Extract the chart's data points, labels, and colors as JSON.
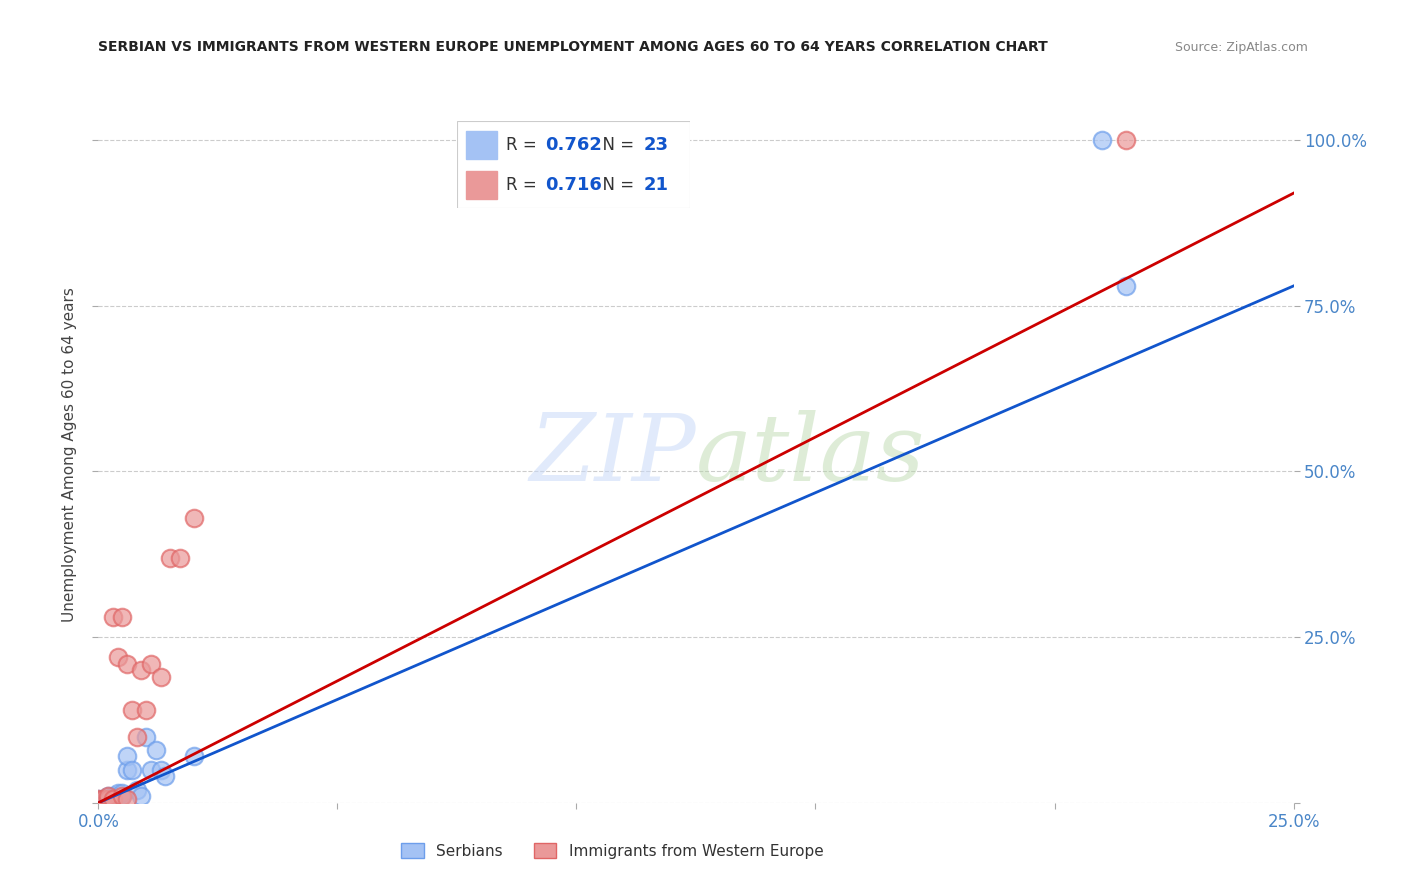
{
  "title": "SERBIAN VS IMMIGRANTS FROM WESTERN EUROPE UNEMPLOYMENT AMONG AGES 60 TO 64 YEARS CORRELATION CHART",
  "source": "Source: ZipAtlas.com",
  "ylabel": "Unemployment Among Ages 60 to 64 years",
  "xlim": [
    0.0,
    0.25
  ],
  "ylim": [
    0.0,
    1.05
  ],
  "watermark_text": "ZIPatlas",
  "serbian_color": "#a4c2f4",
  "serbian_edge_color": "#6d9eeb",
  "serbian_line_color": "#1155cc",
  "immigrant_color": "#ea9999",
  "immigrant_edge_color": "#e06666",
  "immigrant_line_color": "#cc0000",
  "background_color": "#ffffff",
  "grid_color": "#cccccc",
  "tick_color": "#4a86c8",
  "serbian_x": [
    0.0,
    0.001,
    0.002,
    0.002,
    0.003,
    0.003,
    0.004,
    0.004,
    0.005,
    0.005,
    0.006,
    0.006,
    0.007,
    0.008,
    0.009,
    0.01,
    0.011,
    0.012,
    0.013,
    0.014,
    0.02,
    0.21,
    0.215
  ],
  "serbian_y": [
    0.005,
    0.005,
    0.005,
    0.01,
    0.005,
    0.01,
    0.01,
    0.015,
    0.01,
    0.015,
    0.05,
    0.07,
    0.05,
    0.02,
    0.01,
    0.1,
    0.05,
    0.08,
    0.05,
    0.04,
    0.07,
    1.0,
    0.78
  ],
  "immigrant_x": [
    0.0,
    0.001,
    0.002,
    0.002,
    0.003,
    0.003,
    0.004,
    0.005,
    0.005,
    0.006,
    0.006,
    0.007,
    0.008,
    0.009,
    0.01,
    0.011,
    0.013,
    0.015,
    0.017,
    0.02,
    0.215
  ],
  "immigrant_y": [
    0.005,
    0.005,
    0.005,
    0.01,
    0.005,
    0.28,
    0.22,
    0.28,
    0.01,
    0.21,
    0.005,
    0.14,
    0.1,
    0.2,
    0.14,
    0.21,
    0.19,
    0.37,
    0.37,
    0.43,
    1.0
  ],
  "serbian_line_x0": 0.0,
  "serbian_line_y0": 0.0,
  "serbian_line_x1": 0.25,
  "serbian_line_y1": 0.78,
  "immigrant_line_x0": 0.0,
  "immigrant_line_y0": 0.0,
  "immigrant_line_x1": 0.25,
  "immigrant_line_y1": 0.92
}
